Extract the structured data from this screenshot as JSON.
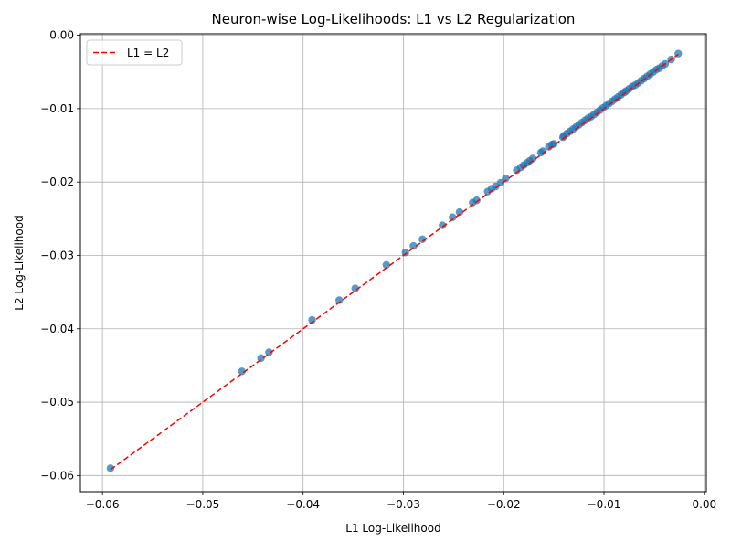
{
  "chart_data": {
    "type": "scatter",
    "title": "Neuron-wise Log-Likelihoods: L1 vs L2 Regularization",
    "xlabel": "L1 Log-Likelihood",
    "ylabel": "L2 Log-Likelihood",
    "xlim": [
      -0.0622,
      0.0002
    ],
    "ylim": [
      -0.0622,
      0.0002
    ],
    "xticks": [
      -0.06,
      -0.05,
      -0.04,
      -0.03,
      -0.02,
      -0.01,
      0.0
    ],
    "xtick_labels": [
      "−0.06",
      "−0.05",
      "−0.04",
      "−0.03",
      "−0.02",
      "−0.01",
      "0.00"
    ],
    "yticks": [
      -0.06,
      -0.05,
      -0.04,
      -0.03,
      -0.02,
      -0.01,
      0.0
    ],
    "ytick_labels": [
      "−0.06",
      "−0.05",
      "−0.04",
      "−0.03",
      "−0.02",
      "−0.01",
      "0.00"
    ],
    "grid": true,
    "legend_position": "upper-left",
    "point_color": "#1f77b4",
    "line_color": "#ff0000",
    "series": [
      {
        "kind": "scatter",
        "x": [
          -0.0592,
          -0.0461,
          -0.0442,
          -0.0434,
          -0.0391,
          -0.0364,
          -0.0348,
          -0.0317,
          -0.0298,
          -0.029,
          -0.0281,
          -0.0261,
          -0.0251,
          -0.0244,
          -0.0231,
          -0.0227,
          -0.0216,
          -0.0212,
          -0.0208,
          -0.0203,
          -0.0198,
          -0.0187,
          -0.0183,
          -0.018,
          -0.0177,
          -0.0174,
          -0.0171,
          -0.0163,
          -0.0161,
          -0.0155,
          -0.0152,
          -0.015,
          -0.0141,
          -0.014,
          -0.0137,
          -0.0134,
          -0.0131,
          -0.0128,
          -0.0125,
          -0.0122,
          -0.0119,
          -0.0116,
          -0.0113,
          -0.011,
          -0.0107,
          -0.0104,
          -0.0101,
          -0.0098,
          -0.0095,
          -0.0092,
          -0.0089,
          -0.0086,
          -0.0083,
          -0.008,
          -0.0078,
          -0.0075,
          -0.0072,
          -0.0069,
          -0.0066,
          -0.0063,
          -0.006,
          -0.0057,
          -0.0054,
          -0.0051,
          -0.0048,
          -0.0045,
          -0.0042,
          -0.0039,
          -0.0033,
          -0.0026
        ],
        "y": [
          -0.059,
          -0.0458,
          -0.044,
          -0.0432,
          -0.0388,
          -0.0361,
          -0.0345,
          -0.0313,
          -0.0296,
          -0.0287,
          -0.0278,
          -0.0259,
          -0.0248,
          -0.0241,
          -0.0228,
          -0.0225,
          -0.0213,
          -0.0209,
          -0.0206,
          -0.0201,
          -0.0195,
          -0.0184,
          -0.018,
          -0.0177,
          -0.0174,
          -0.0171,
          -0.0168,
          -0.016,
          -0.0158,
          -0.0152,
          -0.0149,
          -0.0148,
          -0.0139,
          -0.0137,
          -0.0134,
          -0.0131,
          -0.0128,
          -0.0125,
          -0.0122,
          -0.0119,
          -0.0116,
          -0.0113,
          -0.0111,
          -0.0108,
          -0.0105,
          -0.0102,
          -0.0099,
          -0.0096,
          -0.0093,
          -0.009,
          -0.0087,
          -0.0084,
          -0.0081,
          -0.0078,
          -0.0076,
          -0.0073,
          -0.007,
          -0.0068,
          -0.0065,
          -0.0062,
          -0.0059,
          -0.0056,
          -0.0053,
          -0.005,
          -0.0047,
          -0.0045,
          -0.0042,
          -0.0039,
          -0.0033,
          -0.0025
        ]
      },
      {
        "kind": "line",
        "name": "L1 = L2",
        "x": [
          -0.0592,
          -0.0026
        ],
        "y": [
          -0.0592,
          -0.0026
        ]
      }
    ]
  }
}
